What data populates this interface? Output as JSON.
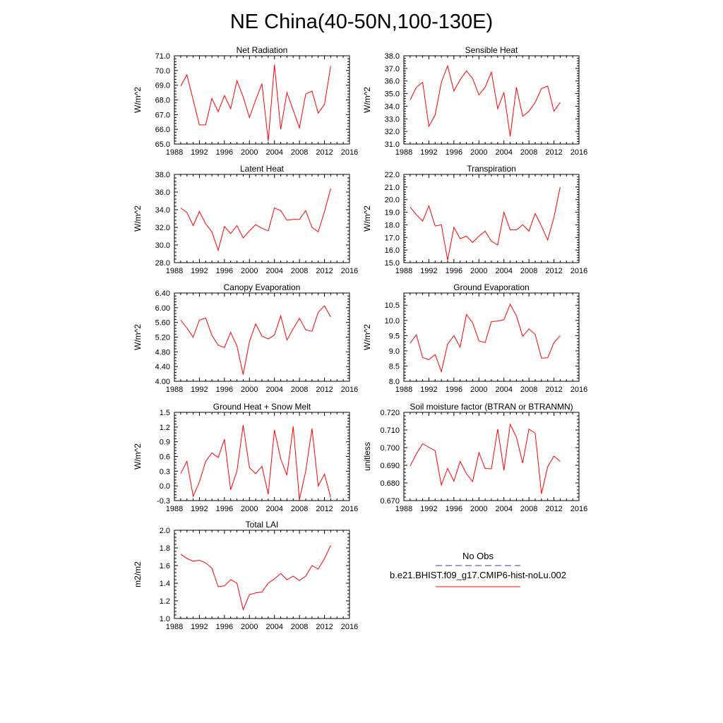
{
  "title": "NE China(40-50N,100-130E)",
  "colors": {
    "model": "#ff0000",
    "obs": "#3a3aa0"
  },
  "legend": {
    "obs_label": "No Obs",
    "model_label": "b.e21.BHIST.f09_g17.CMIP6-hist-noLu.002"
  },
  "chart_data": [
    {
      "type": "line",
      "title": "Net Radiation",
      "ylabel": "W/m^2",
      "xlim": [
        1988,
        2016
      ],
      "ylim": [
        65.0,
        71.0
      ],
      "xticks": [
        "1988",
        "1992",
        "1996",
        "2000",
        "2004",
        "2008",
        "2012",
        "2016"
      ],
      "yticks": [
        "65.0",
        "66.0",
        "67.0",
        "68.0",
        "69.0",
        "70.0",
        "71.0"
      ],
      "x": [
        1989,
        1990,
        1991,
        1992,
        1993,
        1994,
        1995,
        1996,
        1997,
        1998,
        1999,
        2000,
        2001,
        2002,
        2003,
        2004,
        2005,
        2006,
        2007,
        2008,
        2009,
        2010,
        2011,
        2012,
        2013
      ],
      "series": [
        {
          "values": [
            68.95,
            69.7,
            68.0,
            66.3,
            66.3,
            68.1,
            67.2,
            68.3,
            67.4,
            69.3,
            68.2,
            66.8,
            68.0,
            69.1,
            65.2,
            70.4,
            66.0,
            68.5,
            67.3,
            66.1,
            68.4,
            68.6,
            67.1,
            67.7,
            70.3
          ]
        }
      ]
    },
    {
      "type": "line",
      "title": "Sensible Heat",
      "ylabel": "W/m^2",
      "xlim": [
        1988,
        2016
      ],
      "ylim": [
        31.0,
        38.0
      ],
      "xticks": [
        "1988",
        "1992",
        "1996",
        "2000",
        "2004",
        "2008",
        "2012",
        "2016"
      ],
      "yticks": [
        "31.0",
        "32.0",
        "33.0",
        "34.0",
        "35.0",
        "36.0",
        "37.0",
        "38.0"
      ],
      "x": [
        1989,
        1990,
        1991,
        1992,
        1993,
        1994,
        1995,
        1996,
        1997,
        1998,
        1999,
        2000,
        2001,
        2002,
        2003,
        2004,
        2005,
        2006,
        2007,
        2008,
        2009,
        2010,
        2011,
        2012,
        2013
      ],
      "series": [
        {
          "values": [
            34.5,
            35.5,
            35.9,
            32.4,
            33.3,
            35.9,
            37.2,
            35.2,
            36.1,
            36.8,
            36.2,
            34.9,
            35.5,
            36.7,
            33.8,
            35.1,
            31.6,
            35.5,
            33.2,
            33.6,
            34.3,
            35.4,
            35.6,
            33.6,
            34.3
          ]
        }
      ]
    },
    {
      "type": "line",
      "title": "Latent Heat",
      "ylabel": "W/m^2",
      "xlim": [
        1988,
        2016
      ],
      "ylim": [
        28.0,
        38.0
      ],
      "xticks": [
        "1988",
        "1992",
        "1996",
        "2000",
        "2004",
        "2008",
        "2012",
        "2016"
      ],
      "yticks": [
        "28.0",
        "30.0",
        "32.0",
        "34.0",
        "36.0",
        "38.0"
      ],
      "x": [
        1989,
        1990,
        1991,
        1992,
        1993,
        1994,
        1995,
        1996,
        1997,
        1998,
        1999,
        2000,
        2001,
        2002,
        2003,
        2004,
        2005,
        2006,
        2007,
        2008,
        2009,
        2010,
        2011,
        2012,
        2013
      ],
      "series": [
        {
          "values": [
            34.2,
            33.7,
            32.2,
            33.8,
            32.4,
            31.5,
            29.4,
            32.1,
            31.3,
            32.2,
            30.8,
            31.6,
            32.3,
            31.9,
            31.6,
            34.2,
            33.9,
            32.8,
            32.9,
            32.9,
            33.9,
            32.0,
            31.5,
            33.8,
            36.4
          ]
        }
      ]
    },
    {
      "type": "line",
      "title": "Transpiration",
      "ylabel": "W/m^2",
      "xlim": [
        1988,
        2016
      ],
      "ylim": [
        15.0,
        22.0
      ],
      "xticks": [
        "1988",
        "1992",
        "1996",
        "2000",
        "2004",
        "2008",
        "2012",
        "2016"
      ],
      "yticks": [
        "15.0",
        "16.0",
        "17.0",
        "18.0",
        "19.0",
        "20.0",
        "21.0",
        "22.0"
      ],
      "x": [
        1989,
        1990,
        1991,
        1992,
        1993,
        1994,
        1995,
        1996,
        1997,
        1998,
        1999,
        2000,
        2001,
        2002,
        2003,
        2004,
        2005,
        2006,
        2007,
        2008,
        2009,
        2010,
        2011,
        2012,
        2013
      ],
      "series": [
        {
          "values": [
            19.4,
            18.8,
            18.3,
            19.5,
            17.9,
            18.0,
            15.2,
            17.8,
            16.9,
            17.1,
            16.6,
            17.1,
            17.5,
            16.7,
            16.4,
            19.0,
            17.6,
            17.6,
            18.0,
            17.5,
            18.9,
            17.9,
            16.8,
            18.6,
            21.0
          ]
        }
      ]
    },
    {
      "type": "line",
      "title": "Canopy Evaporation",
      "ylabel": "W/m^2",
      "xlim": [
        1988,
        2016
      ],
      "ylim": [
        4.0,
        6.4
      ],
      "xticks": [
        "1988",
        "1992",
        "1996",
        "2000",
        "2004",
        "2008",
        "2012",
        "2016"
      ],
      "yticks": [
        "4.00",
        "4.40",
        "4.80",
        "5.20",
        "5.60",
        "6.00",
        "6.40"
      ],
      "x": [
        1989,
        1990,
        1991,
        1992,
        1993,
        1994,
        1995,
        1996,
        1997,
        1998,
        1999,
        2000,
        2001,
        2002,
        2003,
        2004,
        2005,
        2006,
        2007,
        2008,
        2009,
        2010,
        2011,
        2012,
        2013
      ],
      "series": [
        {
          "values": [
            5.66,
            5.45,
            5.2,
            5.66,
            5.72,
            5.25,
            4.98,
            4.92,
            5.33,
            4.96,
            4.18,
            5.08,
            5.56,
            5.23,
            5.15,
            5.26,
            5.78,
            5.12,
            5.43,
            5.71,
            5.4,
            5.36,
            5.88,
            6.05,
            5.75
          ]
        }
      ]
    },
    {
      "type": "line",
      "title": "Ground Evaporation",
      "ylabel": "W/m^2",
      "xlim": [
        1988,
        2016
      ],
      "ylim": [
        8.0,
        10.9
      ],
      "xticks": [
        "1988",
        "1992",
        "1996",
        "2000",
        "2004",
        "2008",
        "2012",
        "2016"
      ],
      "yticks": [
        "8.0",
        "8.5",
        "9.0",
        "9.5",
        "10.0",
        "10.5"
      ],
      "x": [
        1989,
        1990,
        1991,
        1992,
        1993,
        1994,
        1995,
        1996,
        1997,
        1998,
        1999,
        2000,
        2001,
        2002,
        2003,
        2004,
        2005,
        2006,
        2007,
        2008,
        2009,
        2010,
        2011,
        2012,
        2013
      ],
      "series": [
        {
          "values": [
            9.25,
            9.53,
            8.78,
            8.71,
            8.88,
            8.32,
            9.22,
            9.5,
            9.12,
            10.19,
            9.92,
            9.33,
            9.27,
            9.96,
            9.98,
            10.02,
            10.53,
            10.15,
            9.48,
            9.72,
            9.54,
            8.76,
            8.77,
            9.27,
            9.5
          ]
        }
      ]
    },
    {
      "type": "line",
      "title": "Ground Heat + Snow Melt",
      "ylabel": "W/m^2",
      "xlim": [
        1988,
        2016
      ],
      "ylim": [
        -0.3,
        1.5
      ],
      "xticks": [
        "1988",
        "1992",
        "1996",
        "2000",
        "2004",
        "2008",
        "2012",
        "2016"
      ],
      "yticks": [
        "-0.3",
        "0.0",
        "0.3",
        "0.6",
        "0.9",
        "1.2",
        "1.5"
      ],
      "x": [
        1989,
        1990,
        1991,
        1992,
        1993,
        1994,
        1995,
        1996,
        1997,
        1998,
        1999,
        2000,
        2001,
        2002,
        2003,
        2004,
        2005,
        2006,
        2007,
        2008,
        2009,
        2010,
        2011,
        2012,
        2013
      ],
      "series": [
        {
          "values": [
            0.25,
            0.5,
            -0.21,
            0.08,
            0.5,
            0.67,
            0.58,
            0.95,
            -0.08,
            0.3,
            1.24,
            0.37,
            0.25,
            0.4,
            -0.17,
            1.14,
            0.55,
            0.22,
            1.21,
            -0.28,
            0.3,
            1.17,
            0.0,
            0.24,
            -0.24
          ]
        }
      ]
    },
    {
      "type": "line",
      "title": "Soil moisture factor (BTRAN or BTRANMN)",
      "ylabel": "unitless",
      "xlim": [
        1988,
        2016
      ],
      "ylim": [
        0.67,
        0.72
      ],
      "xticks": [
        "1988",
        "1992",
        "1996",
        "2000",
        "2004",
        "2008",
        "2012",
        "2016"
      ],
      "yticks": [
        "0.670",
        "0.680",
        "0.690",
        "0.700",
        "0.710",
        "0.720"
      ],
      "x": [
        1989,
        1990,
        1991,
        1992,
        1993,
        1994,
        1995,
        1996,
        1997,
        1998,
        1999,
        2000,
        2001,
        2002,
        2003,
        2004,
        2005,
        2006,
        2007,
        2008,
        2009,
        2010,
        2011,
        2012,
        2013
      ],
      "series": [
        {
          "values": [
            0.6895,
            0.6965,
            0.7022,
            0.7002,
            0.6982,
            0.6788,
            0.6882,
            0.681,
            0.6922,
            0.6852,
            0.6808,
            0.6972,
            0.6882,
            0.688,
            0.7105,
            0.6872,
            0.7132,
            0.706,
            0.6912,
            0.7105,
            0.7082,
            0.6738,
            0.6892,
            0.6952,
            0.6922
          ]
        }
      ]
    },
    {
      "type": "line",
      "title": "Total LAI",
      "ylabel": "m2/m2",
      "xlim": [
        1988,
        2016
      ],
      "ylim": [
        1.0,
        2.0
      ],
      "xticks": [
        "1988",
        "1992",
        "1996",
        "2000",
        "2004",
        "2008",
        "2012",
        "2016"
      ],
      "yticks": [
        "1.0",
        "1.2",
        "1.4",
        "1.6",
        "1.8",
        "2.0"
      ],
      "x": [
        1989,
        1990,
        1991,
        1992,
        1993,
        1994,
        1995,
        1996,
        1997,
        1998,
        1999,
        2000,
        2001,
        2002,
        2003,
        2004,
        2005,
        2006,
        2007,
        2008,
        2009,
        2010,
        2011,
        2012,
        2013
      ],
      "series": [
        {
          "values": [
            1.73,
            1.68,
            1.65,
            1.66,
            1.63,
            1.57,
            1.36,
            1.37,
            1.44,
            1.4,
            1.1,
            1.27,
            1.29,
            1.3,
            1.4,
            1.45,
            1.51,
            1.44,
            1.48,
            1.43,
            1.48,
            1.6,
            1.56,
            1.68,
            1.83
          ]
        }
      ]
    }
  ]
}
